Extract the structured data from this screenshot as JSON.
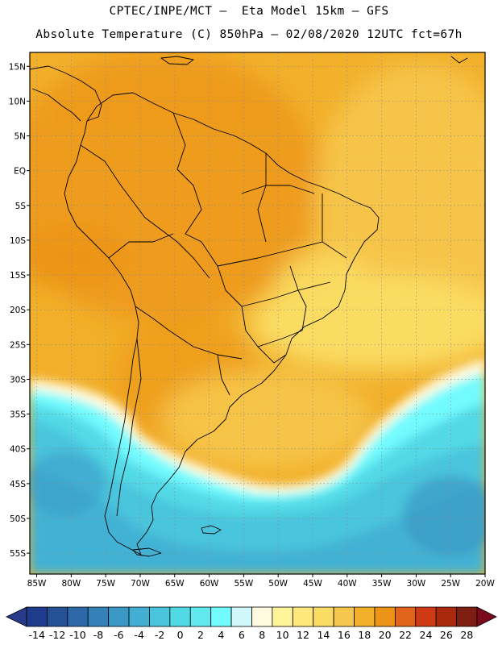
{
  "header": {
    "title_line1": "CPTEC/INPE/MCT –  Eta Model 15km – GFS",
    "title_line2": "Absolute Temperature (C) 850hPa – 02/08/2020 12UTC fct=67h"
  },
  "map": {
    "lat_labels": [
      "15N",
      "10N",
      "5N",
      "EQ",
      "5S",
      "10S",
      "15S",
      "20S",
      "25S",
      "30S",
      "35S",
      "40S",
      "45S",
      "50S",
      "55S"
    ],
    "lon_labels": [
      "85W",
      "80W",
      "75W",
      "70W",
      "65W",
      "60W",
      "55W",
      "50W",
      "45W",
      "40W",
      "35W",
      "30W",
      "25W",
      "20W"
    ],
    "lat_values": [
      15,
      10,
      5,
      0,
      -5,
      -10,
      -15,
      -20,
      -25,
      -30,
      -35,
      -40,
      -45,
      -50,
      -55
    ],
    "lon_values": [
      -85,
      -80,
      -75,
      -70,
      -65,
      -60,
      -55,
      -50,
      -45,
      -40,
      -35,
      -30,
      -25,
      -20
    ],
    "extent": {
      "lon_min": -86,
      "lon_max": -20,
      "lat_min": -58,
      "lat_max": 17
    }
  },
  "colorbar": {
    "labels": [
      "-14",
      "-12",
      "-10",
      "-8",
      "-6",
      "-4",
      "-2",
      "0",
      "2",
      "4",
      "6",
      "8",
      "10",
      "12",
      "14",
      "16",
      "18",
      "20",
      "22",
      "24",
      "26",
      "28"
    ],
    "under_color": "#2a3a8a",
    "over_color": "#7a0a1c",
    "colors": [
      "#1f3c8c",
      "#245196",
      "#2d67a8",
      "#3381b6",
      "#3a98c5",
      "#42aed2",
      "#4ac5dd",
      "#52d9e6",
      "#61e9ef",
      "#72fbff",
      "#d2f7fb",
      "#fffae0",
      "#fff49a",
      "#ffe87b",
      "#fadc64",
      "#f6c74d",
      "#f2b02a",
      "#ec9418",
      "#e2641a",
      "#cd3a14",
      "#a9290f",
      "#7e1d12"
    ]
  }
}
